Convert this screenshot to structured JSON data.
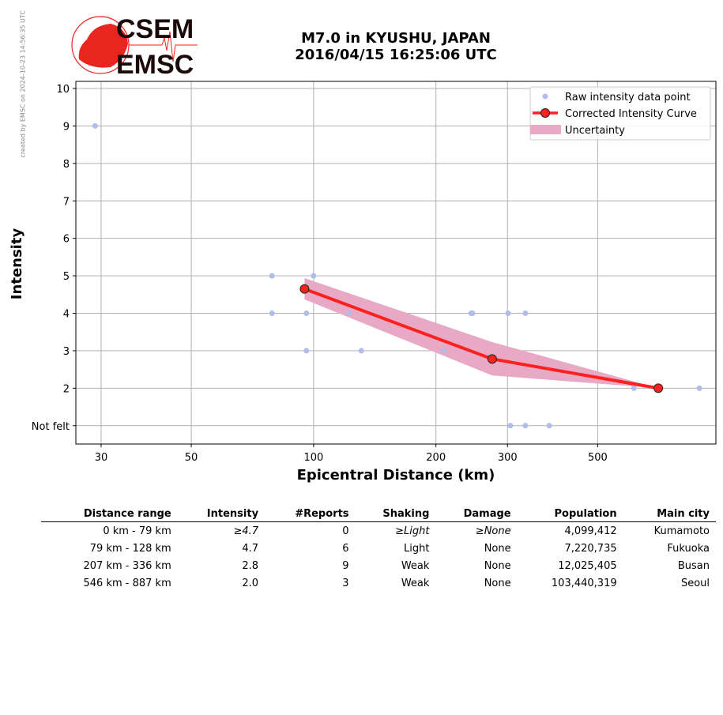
{
  "credit": "created by EMSC on 2024-10-23 14:56:35 UTC",
  "logo": {
    "top": "CSEM",
    "bottom": "EMSC"
  },
  "colors": {
    "raw": "#b0bdea",
    "curve": "#ff2020",
    "uncertainty": "#e8a9c4"
  },
  "chart_data": {
    "type": "scatter",
    "title": [
      "M7.0 in KYUSHU, JAPAN",
      "2016/04/15 16:25:06 UTC"
    ],
    "xlabel": "Epicentral Distance (km)",
    "ylabel": "Intensity",
    "xscale": "log",
    "xlim": [
      26,
      977
    ],
    "ylim": [
      0.51,
      10.19
    ],
    "xticks": [
      30,
      50,
      100,
      200,
      300,
      500
    ],
    "yticks": [
      {
        "v": 10,
        "label": "10"
      },
      {
        "v": 9,
        "label": "9"
      },
      {
        "v": 8,
        "label": "8"
      },
      {
        "v": 7,
        "label": "7"
      },
      {
        "v": 6,
        "label": "6"
      },
      {
        "v": 5,
        "label": "5"
      },
      {
        "v": 4,
        "label": "4"
      },
      {
        "v": 3,
        "label": "3"
      },
      {
        "v": 2,
        "label": "2"
      },
      {
        "v": 1,
        "label": "Not felt"
      }
    ],
    "grid": true,
    "legend_position": "top-right",
    "series": [
      {
        "name": "Raw intensity data point",
        "type": "scatter",
        "points": [
          [
            29,
            9
          ],
          [
            79,
            5
          ],
          [
            100,
            5
          ],
          [
            79,
            4
          ],
          [
            96,
            4
          ],
          [
            122,
            4
          ],
          [
            96,
            3
          ],
          [
            131,
            3
          ],
          [
            209,
            3
          ],
          [
            244,
            4
          ],
          [
            246,
            4
          ],
          [
            301,
            4
          ],
          [
            332,
            4
          ],
          [
            614,
            2
          ],
          [
            890,
            2
          ],
          [
            305,
            1
          ],
          [
            332,
            1
          ],
          [
            380,
            1
          ]
        ]
      },
      {
        "name": "Corrected Intensity Curve",
        "type": "line",
        "points": [
          [
            95,
            4.65
          ],
          [
            275,
            2.78
          ],
          [
            705,
            2.0
          ]
        ]
      },
      {
        "name": "Uncertainty",
        "type": "area",
        "x": [
          95,
          275,
          705
        ],
        "upper": [
          4.94,
          3.23,
          2.0
        ],
        "lower": [
          4.37,
          2.34,
          2.0
        ]
      }
    ]
  },
  "table": {
    "headers": [
      "Distance range",
      "Intensity",
      "#Reports",
      "Shaking",
      "Damage",
      "Population",
      "Main city"
    ],
    "rows": [
      {
        "range": "0 km -   79 km",
        "intensity": "≥4.7",
        "reports": "0",
        "shaking": "≥Light",
        "damage": "≥None",
        "population": "4,099,412",
        "city": "Kumamoto",
        "italic": true
      },
      {
        "range": "79 km -  128 km",
        "intensity": "4.7",
        "reports": "6",
        "shaking": "Light",
        "damage": "None",
        "population": "7,220,735",
        "city": "Fukuoka"
      },
      {
        "range": "207 km -  336 km",
        "intensity": "2.8",
        "reports": "9",
        "shaking": "Weak",
        "damage": "None",
        "population": "12,025,405",
        "city": "Busan"
      },
      {
        "range": "546 km -  887 km",
        "intensity": "2.0",
        "reports": "3",
        "shaking": "Weak",
        "damage": "None",
        "population": "103,440,319",
        "city": "Seoul"
      }
    ]
  }
}
